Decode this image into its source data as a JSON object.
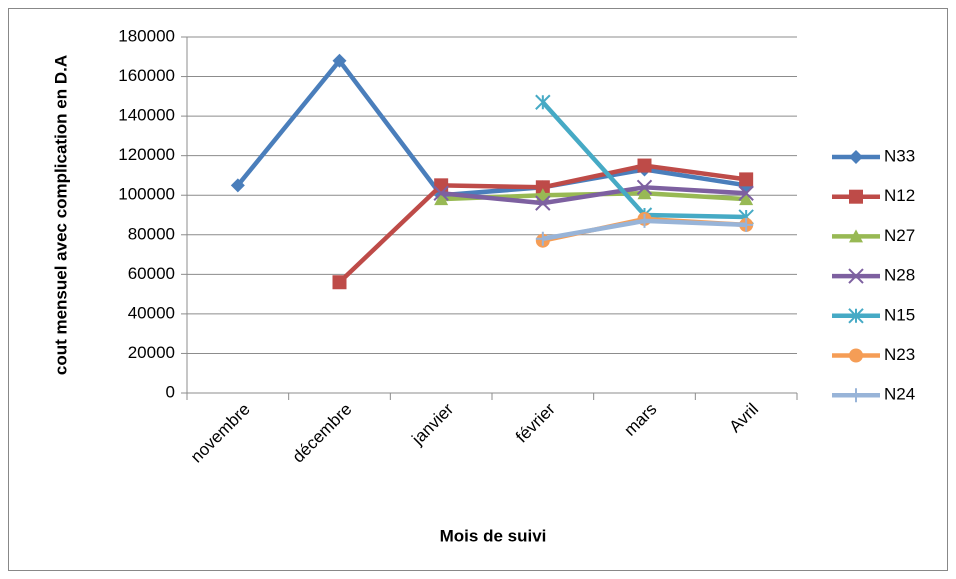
{
  "chart_data": {
    "type": "line",
    "xlabel": "Mois de suivi",
    "ylabel": "cout mensuel avec complication en D.A",
    "categories": [
      "novembre",
      "décembre",
      "janvier",
      "février",
      "mars",
      "Avril"
    ],
    "series": [
      {
        "name": "N33",
        "color": "#4a7ebb",
        "marker": "diamond",
        "values": [
          105000,
          168000,
          100000,
          104000,
          113000,
          105000
        ]
      },
      {
        "name": "N12",
        "color": "#be4b48",
        "marker": "square",
        "values": [
          null,
          56000,
          105000,
          104000,
          115000,
          108000
        ]
      },
      {
        "name": "N27",
        "color": "#98b954",
        "marker": "triangle",
        "values": [
          null,
          null,
          98000,
          100000,
          101000,
          98000
        ]
      },
      {
        "name": "N28",
        "color": "#7d60a0",
        "marker": "x",
        "values": [
          null,
          null,
          101000,
          96000,
          104000,
          101000
        ]
      },
      {
        "name": "N15",
        "color": "#46aac5",
        "marker": "star",
        "values": [
          null,
          null,
          null,
          147000,
          90000,
          89000
        ]
      },
      {
        "name": "N23",
        "color": "#f59d56",
        "marker": "circle",
        "values": [
          null,
          null,
          null,
          77000,
          88000,
          85000
        ]
      },
      {
        "name": "N24",
        "color": "#98b4d8",
        "marker": "plus",
        "values": [
          null,
          null,
          null,
          78000,
          87000,
          85000
        ]
      }
    ],
    "ylim": [
      0,
      180000
    ],
    "yticks": [
      0,
      20000,
      40000,
      60000,
      80000,
      100000,
      120000,
      140000,
      160000,
      180000
    ],
    "grid": true,
    "legend": "right"
  }
}
